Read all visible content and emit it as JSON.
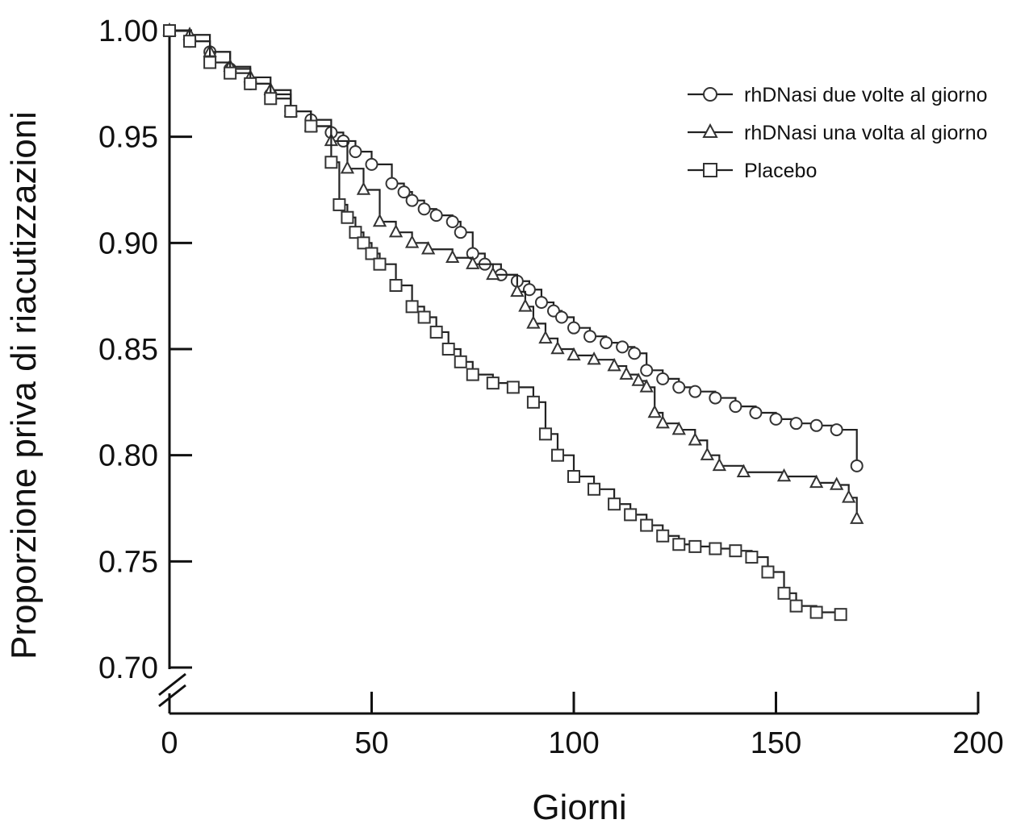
{
  "chart_data": {
    "type": "line",
    "title": "",
    "xlabel": "Giorni",
    "ylabel": "Proporzione priva di riacutizzazioni",
    "xlim": [
      0,
      200
    ],
    "ylim": [
      0.7,
      1.0
    ],
    "x_ticks": [
      "0",
      "50",
      "100",
      "150",
      "200"
    ],
    "x_tick_values": [
      0,
      50,
      100,
      150,
      200
    ],
    "y_ticks": [
      "0.70",
      "0.75",
      "0.80",
      "0.85",
      "0.90",
      "0.95",
      "1.00"
    ],
    "y_tick_values": [
      0.7,
      0.75,
      0.8,
      0.85,
      0.9,
      0.95,
      1.0
    ],
    "y_axis_break": true,
    "grid": false,
    "legend_position": "top-right",
    "series": [
      {
        "name": "rhDNasi due volte al giorno",
        "marker": "circle",
        "x": [
          0,
          5,
          10,
          15,
          20,
          25,
          30,
          35,
          40,
          43,
          46,
          50,
          55,
          58,
          60,
          63,
          66,
          70,
          72,
          75,
          78,
          82,
          86,
          89,
          92,
          95,
          97,
          100,
          104,
          108,
          112,
          115,
          118,
          122,
          126,
          130,
          135,
          140,
          145,
          150,
          155,
          160,
          165,
          170
        ],
        "y": [
          1.0,
          0.995,
          0.99,
          0.982,
          0.975,
          0.97,
          0.962,
          0.958,
          0.952,
          0.948,
          0.943,
          0.937,
          0.928,
          0.924,
          0.92,
          0.916,
          0.913,
          0.91,
          0.905,
          0.895,
          0.89,
          0.885,
          0.882,
          0.878,
          0.872,
          0.868,
          0.865,
          0.86,
          0.856,
          0.853,
          0.851,
          0.848,
          0.84,
          0.836,
          0.832,
          0.83,
          0.827,
          0.823,
          0.82,
          0.817,
          0.815,
          0.814,
          0.812,
          0.795
        ]
      },
      {
        "name": "rhDNasi una volta al giorno",
        "marker": "triangle",
        "x": [
          0,
          5,
          10,
          15,
          20,
          25,
          30,
          35,
          40,
          44,
          48,
          52,
          56,
          60,
          64,
          70,
          75,
          80,
          86,
          88,
          90,
          93,
          96,
          100,
          105,
          110,
          113,
          116,
          118,
          120,
          122,
          126,
          130,
          133,
          136,
          142,
          152,
          160,
          165,
          168,
          170
        ],
        "y": [
          1.0,
          0.998,
          0.99,
          0.983,
          0.978,
          0.972,
          0.962,
          0.955,
          0.948,
          0.935,
          0.925,
          0.91,
          0.905,
          0.9,
          0.897,
          0.893,
          0.89,
          0.885,
          0.877,
          0.87,
          0.862,
          0.855,
          0.85,
          0.847,
          0.845,
          0.842,
          0.838,
          0.835,
          0.832,
          0.82,
          0.815,
          0.812,
          0.807,
          0.8,
          0.795,
          0.792,
          0.79,
          0.787,
          0.786,
          0.78,
          0.77
        ]
      },
      {
        "name": "Placebo",
        "marker": "square",
        "x": [
          0,
          5,
          10,
          15,
          20,
          25,
          30,
          35,
          40,
          42,
          44,
          46,
          48,
          50,
          52,
          56,
          60,
          63,
          66,
          69,
          72,
          75,
          80,
          85,
          90,
          93,
          96,
          100,
          105,
          110,
          114,
          118,
          122,
          126,
          130,
          135,
          140,
          144,
          148,
          152,
          155,
          160,
          166
        ],
        "y": [
          1.0,
          0.995,
          0.985,
          0.98,
          0.975,
          0.968,
          0.962,
          0.955,
          0.938,
          0.918,
          0.912,
          0.905,
          0.9,
          0.895,
          0.89,
          0.88,
          0.87,
          0.865,
          0.858,
          0.85,
          0.844,
          0.838,
          0.834,
          0.832,
          0.825,
          0.81,
          0.8,
          0.79,
          0.784,
          0.777,
          0.772,
          0.767,
          0.762,
          0.758,
          0.757,
          0.756,
          0.755,
          0.752,
          0.745,
          0.735,
          0.729,
          0.726,
          0.725
        ]
      }
    ]
  }
}
